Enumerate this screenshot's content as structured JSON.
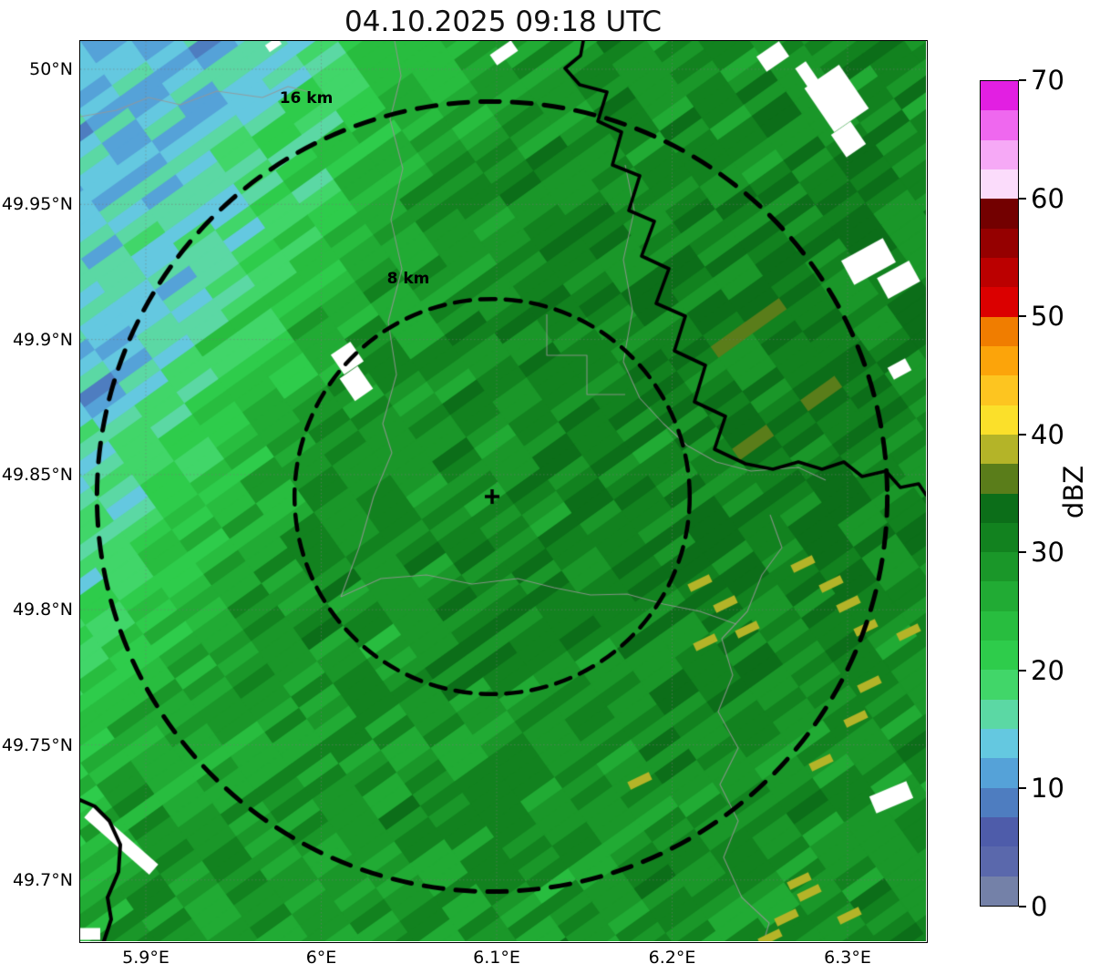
{
  "title": "04.10.2025 09:18 UTC",
  "chart_data": {
    "type": "heatmap",
    "subtype": "weather-radar-reflectivity-map",
    "title": "04.10.2025 09:18 UTC",
    "x_axis": {
      "tick_labels": [
        "5.9°E",
        "6°E",
        "6.1°E",
        "6.2°E",
        "6.3°E"
      ]
    },
    "y_axis": {
      "tick_labels": [
        "50°N",
        "49.95°N",
        "49.9°N",
        "49.85°N",
        "49.8°N",
        "49.75°N",
        "49.7°N"
      ]
    },
    "extent": {
      "lon": "≈5.86°E – 6.34°E",
      "lat": "≈49.68°N – 50.01°N"
    },
    "colorbar": {
      "label": "dBZ",
      "min": 0,
      "max": 70,
      "step_dbz": 2.5,
      "ticks": [
        0,
        10,
        20,
        30,
        40,
        50,
        60,
        70
      ],
      "colors_low_to_high": [
        "#7481a8",
        "#5a68ac",
        "#4e5caa",
        "#4e7dc0",
        "#55a2d8",
        "#64c8e0",
        "#5bd8a4",
        "#41d669",
        "#2ecc4b",
        "#28bd3f",
        "#21ab34",
        "#1a9729",
        "#12821f",
        "#0c6e19",
        "#5a7d1a",
        "#b4b428",
        "#fbe02a",
        "#fdc520",
        "#fca40a",
        "#f07d00",
        "#db0000",
        "#bb0000",
        "#950000",
        "#730000",
        "#fbdcfb",
        "#f6a9f6",
        "#ef68ef",
        "#e21fe2"
      ]
    },
    "range_rings": [
      {
        "label": "8 km",
        "radius_km": 8
      },
      {
        "label": "16 km",
        "radius_km": 16
      }
    ],
    "center_marker": {
      "symbol": "+",
      "lon": "≈6.10°E",
      "lat": "≈49.84°N"
    },
    "field_regions": [
      {
        "area": "northwest and west edge",
        "reflectivity_dbz": "8–16 (blue to cyan streaks)"
      },
      {
        "area": "center and east",
        "reflectivity_dbz": "24–33 (green, darkest east of center)"
      },
      {
        "area": "southwest quadrant",
        "reflectivity_dbz": "18–26 (teal–green mix)"
      },
      {
        "area": "scattered specks southeast",
        "reflectivity_dbz": "37–40 (olive)"
      },
      {
        "area": "no-data patches",
        "reflectivity_dbz": "white (no echo data)"
      }
    ],
    "overlays": [
      "dashed range rings (8 km, 16 km)",
      "thick black river / border line",
      "thin gray municipal boundaries",
      "dotted lat/lon graticule",
      "white no-data patches"
    ]
  }
}
